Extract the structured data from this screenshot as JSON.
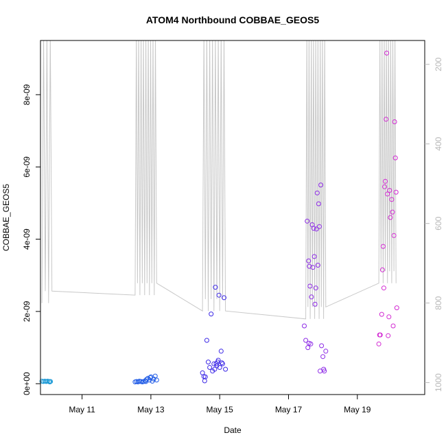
{
  "chart_data": {
    "type": "scatter",
    "title": "ATOM4 Northbound COBBAE_GEOS5",
    "xlabel": "Date",
    "ylabel": "COBBAE_GEOS5",
    "x_ticks": [
      "May 11",
      "May 13",
      "May 15",
      "May 17",
      "May 19"
    ],
    "y_ticks": [
      "0e+00",
      "2e-09",
      "4e-09",
      "6e-09",
      "8e-09"
    ],
    "y2_ticks": [
      "200",
      "400",
      "600",
      "800",
      "1000"
    ],
    "xlim": [
      "May 9 19:00",
      "May 20 23:00"
    ],
    "ylim": [
      -3e-10,
      9.5e-09
    ],
    "y2lim_reversed": [
      1030,
      140
    ],
    "grid": false,
    "colors": {
      "axis": "#000000",
      "secondary": "#c8c8c8",
      "secondary_ticks": "#b8b8b8"
    },
    "series": [
      {
        "color": "#1e9bd7",
        "points": [
          [
            "May 9 20:00",
            7e-11
          ],
          [
            "May 9 21:00",
            6e-11
          ],
          [
            "May 9 22:00",
            7e-11
          ],
          [
            "May 9 23:00",
            6e-11
          ],
          [
            "May 10 00:00",
            7e-11
          ],
          [
            "May 10 01:00",
            6e-11
          ],
          [
            "May 10 01:30",
            5e-11
          ],
          [
            "May 10 02:00",
            6e-11
          ]
        ]
      },
      {
        "color": "#1e5ae6",
        "points": [
          [
            "May 12 13:00",
            5e-11
          ],
          [
            "May 12 14:00",
            6e-11
          ],
          [
            "May 12 15:00",
            5e-11
          ],
          [
            "May 12 16:00",
            7e-11
          ],
          [
            "May 12 17:00",
            6e-11
          ],
          [
            "May 12 18:00",
            5e-11
          ],
          [
            "May 12 19:00",
            6e-11
          ],
          [
            "May 12 20:00",
            8e-11
          ],
          [
            "May 12 21:00",
            1.2e-10
          ],
          [
            "May 12 22:00",
            1.5e-10
          ],
          [
            "May 12 23:00",
            1e-10
          ],
          [
            "May 13 00:00",
            1.9e-10
          ],
          [
            "May 13 01:00",
            7e-11
          ],
          [
            "May 13 02:00",
            1.3e-10
          ],
          [
            "May 13 03:00",
            2.1e-10
          ],
          [
            "May 13 04:00",
            1e-10
          ],
          [
            "May 12 20:30",
            6e-11
          ],
          [
            "May 12 23:30",
            1.7e-10
          ]
        ]
      },
      {
        "color": "#3c28e6",
        "points": [
          [
            "May 14 12:00",
            3e-10
          ],
          [
            "May 14 13:00",
            2e-10
          ],
          [
            "May 14 13:30",
            8e-11
          ],
          [
            "May 14 14:00",
            1.9e-10
          ],
          [
            "May 14 15:00",
            1.2e-09
          ],
          [
            "May 14 16:00",
            6e-10
          ],
          [
            "May 14 17:00",
            4.5e-10
          ],
          [
            "May 14 18:00",
            1.93e-09
          ],
          [
            "May 14 19:00",
            3.5e-10
          ],
          [
            "May 14 20:00",
            5.5e-10
          ],
          [
            "May 14 20:30",
            4e-10
          ],
          [
            "May 14 21:00",
            2.67e-09
          ],
          [
            "May 14 22:00",
            5e-10
          ],
          [
            "May 14 23:00",
            6.5e-10
          ],
          [
            "May 14 23:30",
            2.45e-09
          ],
          [
            "May 15 00:00",
            4.5e-10
          ],
          [
            "May 15 01:00",
            9e-10
          ],
          [
            "May 15 02:00",
            5.5e-10
          ],
          [
            "May 15 03:00",
            2.38e-09
          ],
          [
            "May 15 04:00",
            4e-10
          ],
          [
            "May 14 21:30",
            5.5e-10
          ],
          [
            "May 14 22:30",
            6e-10
          ],
          [
            "May 15 01:30",
            5.8e-10
          ]
        ]
      },
      {
        "color": "#8c28e6",
        "points": [
          [
            "May 17 11:00",
            1.6e-09
          ],
          [
            "May 17 12:00",
            1.2e-09
          ],
          [
            "May 17 13:00",
            4.5e-09
          ],
          [
            "May 17 14:00",
            3.4e-09
          ],
          [
            "May 17 14:30",
            3.25e-09
          ],
          [
            "May 17 15:00",
            2.7e-09
          ],
          [
            "May 17 15:30",
            1.1e-09
          ],
          [
            "May 17 16:00",
            2.4e-09
          ],
          [
            "May 17 16:30",
            4.4e-09
          ],
          [
            "May 17 17:00",
            3.22e-09
          ],
          [
            "May 17 17:30",
            4.3e-09
          ],
          [
            "May 17 18:00",
            3.52e-09
          ],
          [
            "May 17 18:30",
            2.2e-09
          ],
          [
            "May 17 19:00",
            2.65e-09
          ],
          [
            "May 17 19:30",
            4.28e-09
          ],
          [
            "May 17 20:00",
            5.28e-09
          ],
          [
            "May 17 20:30",
            3.28e-09
          ],
          [
            "May 17 21:00",
            4.98e-09
          ],
          [
            "May 17 21:30",
            4.35e-09
          ],
          [
            "May 17 22:00",
            3.5e-10
          ],
          [
            "May 17 22:30",
            5.5e-09
          ],
          [
            "May 17 23:00",
            1.05e-09
          ],
          [
            "May 18 00:00",
            7.5e-10
          ],
          [
            "May 18 00:30",
            4e-10
          ],
          [
            "May 18 01:00",
            3.5e-10
          ],
          [
            "May 18 02:00",
            9e-10
          ],
          [
            "May 17 13:30",
            1e-09
          ],
          [
            "May 17 14:15",
            1.12e-09
          ]
        ]
      },
      {
        "color": "#d228d2",
        "points": [
          [
            "May 19 15:00",
            1.1e-09
          ],
          [
            "May 19 16:00",
            1.35e-09
          ],
          [
            "May 19 17:00",
            1.92e-09
          ],
          [
            "May 19 17:30",
            3.15e-09
          ],
          [
            "May 19 18:00",
            3.8e-09
          ],
          [
            "May 19 18:30",
            2.65e-09
          ],
          [
            "May 19 19:00",
            5.45e-09
          ],
          [
            "May 19 19:30",
            5.6e-09
          ],
          [
            "May 19 20:00",
            7.32e-09
          ],
          [
            "May 19 20:30",
            9.15e-09
          ],
          [
            "May 19 21:00",
            5.25e-09
          ],
          [
            "May 19 21:30",
            1.33e-09
          ],
          [
            "May 19 22:00",
            1.85e-09
          ],
          [
            "May 19 22:30",
            5.35e-09
          ],
          [
            "May 19 23:00",
            4.6e-09
          ],
          [
            "May 20 00:00",
            5.1e-09
          ],
          [
            "May 20 00:30",
            4.75e-09
          ],
          [
            "May 20 01:00",
            1.6e-09
          ],
          [
            "May 20 01:30",
            4.1e-09
          ],
          [
            "May 20 02:00",
            7.25e-09
          ],
          [
            "May 20 02:30",
            6.25e-09
          ],
          [
            "May 20 03:00",
            5.3e-09
          ],
          [
            "May 20 03:30",
            2.1e-09
          ],
          [
            "May 19 15:30",
            1.35e-09
          ]
        ]
      }
    ]
  }
}
